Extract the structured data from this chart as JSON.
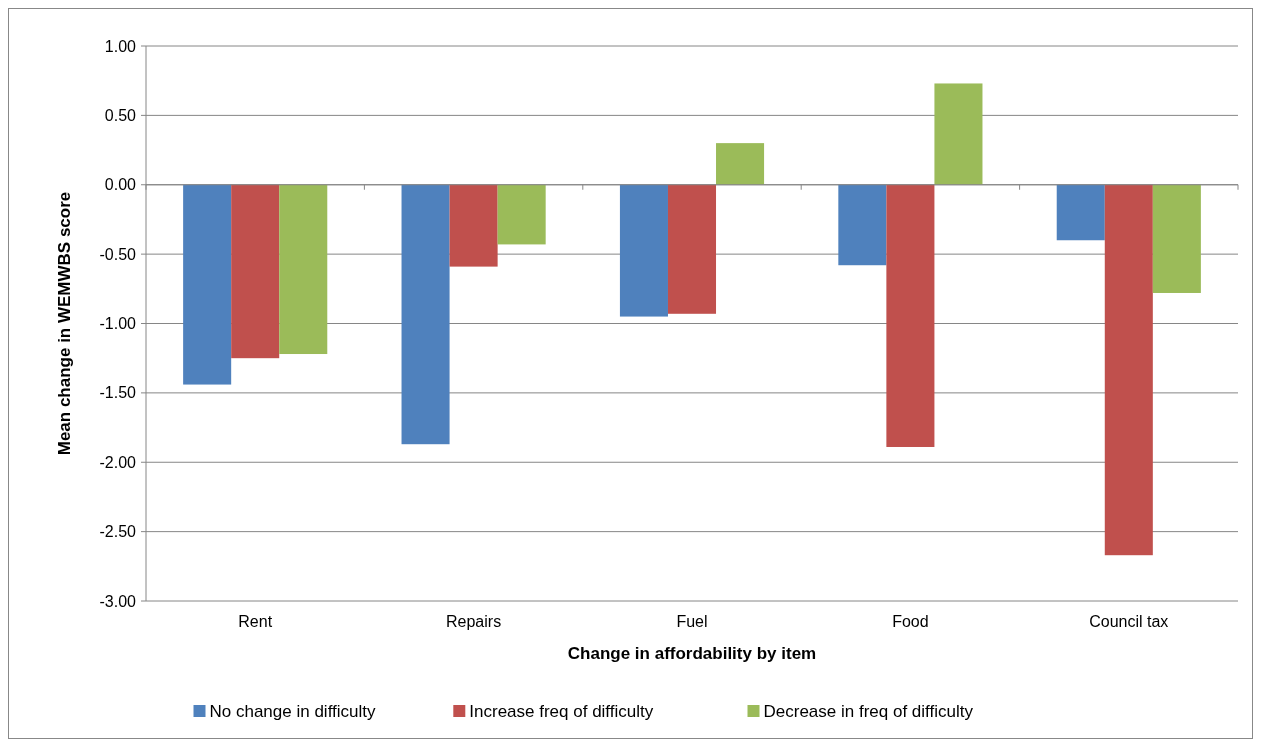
{
  "chart_data": {
    "type": "bar",
    "xlabel": "Change in affordability by item",
    "ylabel": "Mean change in WEMWBS score",
    "categories": [
      "Rent",
      "Repairs",
      "Fuel",
      "Food",
      "Council tax"
    ],
    "series": [
      {
        "name": "No change in difficulty",
        "color": "#4f81bd",
        "values": [
          -1.44,
          -1.87,
          -0.95,
          -0.58,
          -0.4
        ]
      },
      {
        "name": "Increase freq of difficulty",
        "color": "#c0504d",
        "values": [
          -1.25,
          -0.59,
          -0.93,
          -1.89,
          -2.67
        ]
      },
      {
        "name": "Decrease in freq of difficulty",
        "color": "#9bbb59",
        "values": [
          -1.22,
          -0.43,
          0.3,
          0.73,
          -0.78
        ]
      }
    ],
    "ylim": [
      -3,
      1
    ],
    "yticks": [
      {
        "value": -3,
        "label": "-3.00"
      },
      {
        "value": -2.5,
        "label": "-2.50"
      },
      {
        "value": -2,
        "label": "-2.00"
      },
      {
        "value": -1.5,
        "label": "-1.50"
      },
      {
        "value": -1,
        "label": "-1.00"
      },
      {
        "value": -0.5,
        "label": "-0.50"
      },
      {
        "value": 0,
        "label": "0.00"
      },
      {
        "value": 0.5,
        "label": "0.50"
      },
      {
        "value": 1,
        "label": "1.00"
      }
    ],
    "grid": "y",
    "legend": "bottom"
  }
}
